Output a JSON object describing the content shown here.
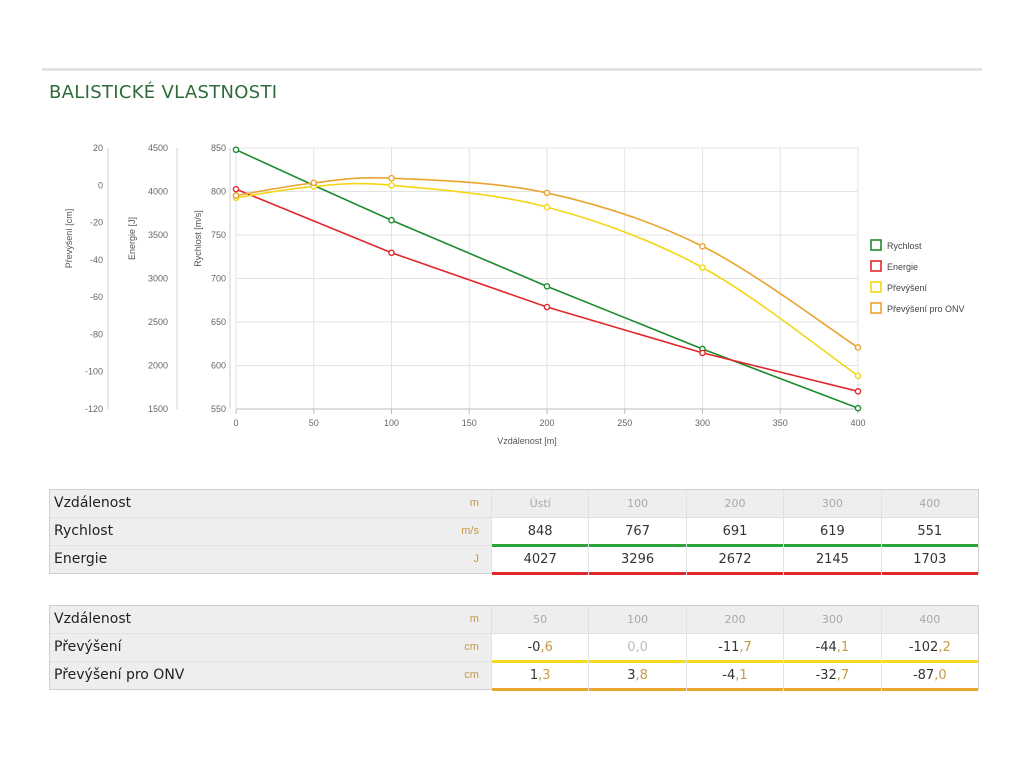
{
  "page": {
    "title": "BALISTICKÉ VLASTNOSTI"
  },
  "chart_data": {
    "type": "line",
    "x": [
      0,
      50,
      100,
      200,
      300,
      400
    ],
    "xlabel": "Vzdálenost [m]",
    "xlim": [
      0,
      400
    ],
    "xticks": [
      0,
      50,
      100,
      150,
      200,
      250,
      300,
      350,
      400
    ],
    "axes": {
      "velocity": {
        "label": "Rychlost [m/s]",
        "ylim": [
          550,
          850
        ],
        "ticks": [
          550,
          600,
          650,
          700,
          750,
          800,
          850
        ]
      },
      "energy": {
        "label": "Energie [J]",
        "ylim": [
          1500,
          4500
        ],
        "ticks": [
          1500,
          2000,
          2500,
          3000,
          3500,
          4000,
          4500
        ]
      },
      "drop": {
        "label": "Převýšení [cm]",
        "ylim": [
          -120,
          20
        ],
        "ticks": [
          -120,
          -100,
          -80,
          -60,
          -40,
          -20,
          0,
          20
        ]
      }
    },
    "grid": true,
    "legend_position": "right",
    "series": [
      {
        "name": "Rychlost",
        "axis": "velocity",
        "color": "#1e8a2e",
        "values": [
          848,
          807,
          767,
          691,
          619,
          551
        ]
      },
      {
        "name": "Energie",
        "axis": "energy",
        "color": "#e2272c",
        "values": [
          4027,
          null,
          3296,
          2672,
          2145,
          1703
        ]
      },
      {
        "name": "Převýšení",
        "axis": "drop",
        "color": "#f5d616",
        "x": [
          0,
          50,
          100,
          200,
          300,
          400
        ],
        "values": [
          -6.7,
          -0.6,
          0.0,
          -11.7,
          -44.1,
          -102.2
        ]
      },
      {
        "name": "Převýšení pro ONV",
        "axis": "drop",
        "color": "#e9a52e",
        "x": [
          0,
          50,
          100,
          200,
          300,
          400
        ],
        "values": [
          -5.5,
          1.3,
          3.8,
          -4.1,
          -32.7,
          -87.0
        ]
      }
    ]
  },
  "table1": {
    "header": {
      "label": "Vzdálenost",
      "unit": "m",
      "cols": [
        "Ústí",
        "100",
        "200",
        "300",
        "400"
      ]
    },
    "rows": [
      {
        "label": "Rychlost",
        "unit": "m/s",
        "values": [
          "848",
          "767",
          "691",
          "619",
          "551"
        ]
      },
      {
        "label": "Energie",
        "unit": "J",
        "values": [
          "4027",
          "3296",
          "2672",
          "2145",
          "1703"
        ]
      }
    ]
  },
  "table2": {
    "header": {
      "label": "Vzdálenost",
      "unit": "m",
      "cols": [
        "50",
        "100",
        "200",
        "300",
        "400"
      ]
    },
    "rows": [
      {
        "label": "Převýšení",
        "unit": "cm",
        "values": [
          {
            "int": "-0",
            "frac": ",6"
          },
          {
            "int": "0",
            "frac": ",0"
          },
          {
            "int": "-11",
            "frac": ",7"
          },
          {
            "int": "-44",
            "frac": ",1"
          },
          {
            "int": "-102",
            "frac": ",2"
          }
        ]
      },
      {
        "label": "Převýšení pro ONV",
        "unit": "cm",
        "values": [
          {
            "int": "1",
            "frac": ",3"
          },
          {
            "int": "3",
            "frac": ",8"
          },
          {
            "int": "-4",
            "frac": ",1"
          },
          {
            "int": "-32",
            "frac": ",7"
          },
          {
            "int": "-87",
            "frac": ",0"
          }
        ]
      }
    ]
  }
}
